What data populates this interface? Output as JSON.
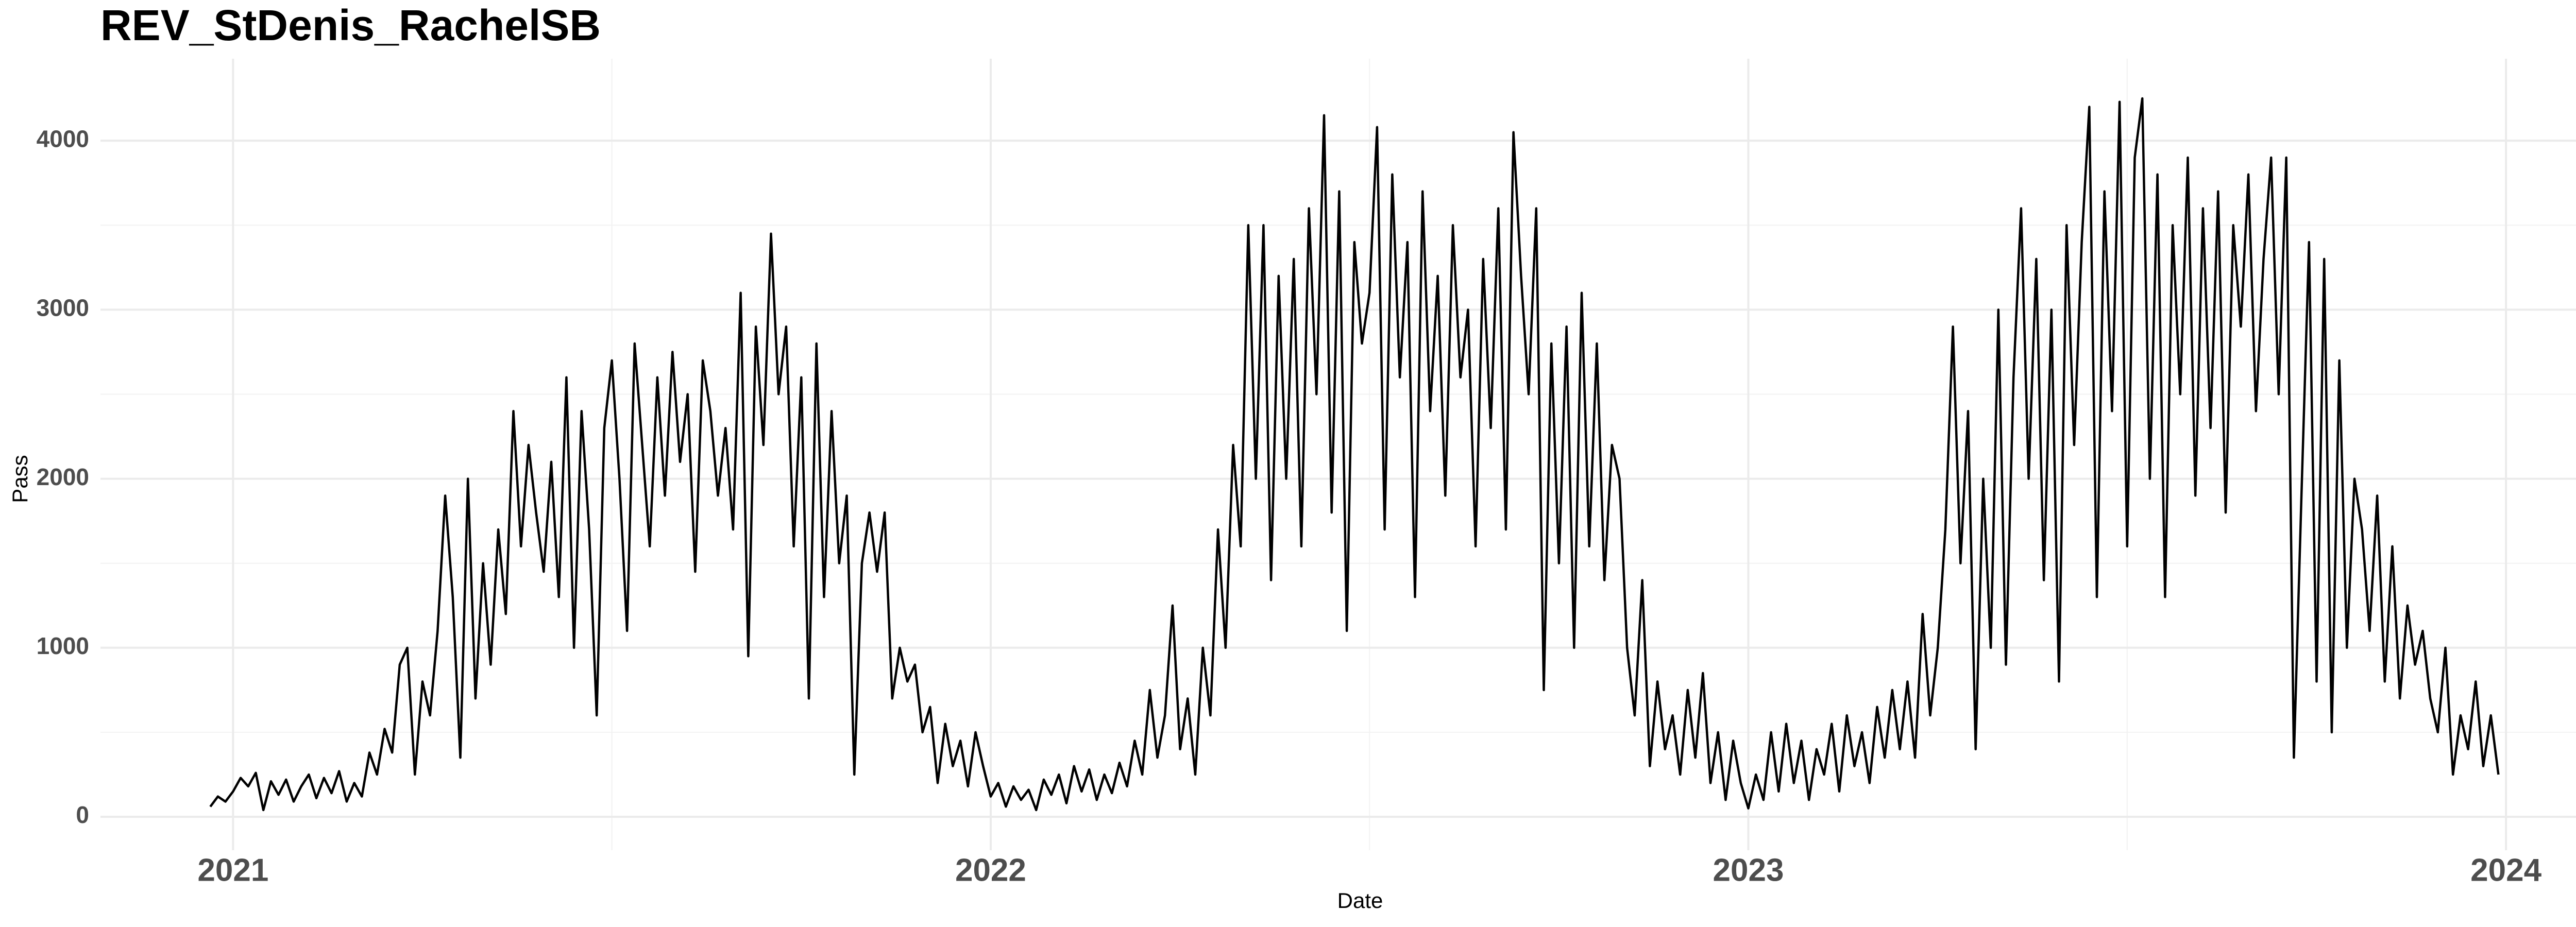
{
  "chart_data": {
    "type": "line",
    "title": "REV_StDenis_RachelSB",
    "x_label": "Date",
    "y_label": "Pass",
    "color": "#000000",
    "grid": true,
    "xlim": [
      2020.825,
      2024.123
    ],
    "xticks": [
      2021,
      2022,
      2023,
      2024
    ],
    "ylim": [
      -198,
      4485
    ],
    "yticks": [
      0,
      1000,
      2000,
      3000,
      4000
    ],
    "x": [
      2020.97,
      2020.98,
      2020.99,
      2021.0,
      2021.01,
      2021.02,
      2021.03,
      2021.04,
      2021.05,
      2021.06,
      2021.07,
      2021.08,
      2021.09,
      2021.1,
      2021.11,
      2021.12,
      2021.13,
      2021.14,
      2021.15,
      2021.16,
      2021.17,
      2021.18,
      2021.19,
      2021.2,
      2021.21,
      2021.22,
      2021.23,
      2021.24,
      2021.25,
      2021.26,
      2021.27,
      2021.28,
      2021.29,
      2021.3,
      2021.31,
      2021.32,
      2021.33,
      2021.34,
      2021.35,
      2021.36,
      2021.37,
      2021.38,
      2021.39,
      2021.4,
      2021.41,
      2021.42,
      2021.43,
      2021.44,
      2021.45,
      2021.46,
      2021.47,
      2021.48,
      2021.49,
      2021.5,
      2021.51,
      2021.52,
      2021.53,
      2021.54,
      2021.55,
      2021.56,
      2021.57,
      2021.58,
      2021.59,
      2021.6,
      2021.61,
      2021.62,
      2021.63,
      2021.64,
      2021.65,
      2021.66,
      2021.67,
      2021.68,
      2021.69,
      2021.7,
      2021.71,
      2021.72,
      2021.73,
      2021.74,
      2021.75,
      2021.76,
      2021.77,
      2021.78,
      2021.79,
      2021.8,
      2021.81,
      2021.82,
      2021.83,
      2021.84,
      2021.85,
      2021.86,
      2021.87,
      2021.88,
      2021.89,
      2021.9,
      2021.91,
      2021.92,
      2021.93,
      2021.94,
      2021.95,
      2021.96,
      2021.97,
      2021.98,
      2021.99,
      2022.0,
      2022.01,
      2022.02,
      2022.03,
      2022.04,
      2022.05,
      2022.06,
      2022.07,
      2022.08,
      2022.09,
      2022.1,
      2022.11,
      2022.12,
      2022.13,
      2022.14,
      2022.15,
      2022.16,
      2022.17,
      2022.18,
      2022.19,
      2022.2,
      2022.21,
      2022.22,
      2022.23,
      2022.24,
      2022.25,
      2022.26,
      2022.27,
      2022.28,
      2022.29,
      2022.3,
      2022.31,
      2022.32,
      2022.33,
      2022.34,
      2022.35,
      2022.36,
      2022.37,
      2022.38,
      2022.39,
      2022.4,
      2022.41,
      2022.42,
      2022.43,
      2022.44,
      2022.45,
      2022.46,
      2022.47,
      2022.48,
      2022.49,
      2022.5,
      2022.51,
      2022.52,
      2022.53,
      2022.54,
      2022.55,
      2022.56,
      2022.57,
      2022.58,
      2022.59,
      2022.6,
      2022.61,
      2022.62,
      2022.63,
      2022.64,
      2022.65,
      2022.66,
      2022.67,
      2022.68,
      2022.69,
      2022.7,
      2022.71,
      2022.72,
      2022.73,
      2022.74,
      2022.75,
      2022.76,
      2022.77,
      2022.78,
      2022.79,
      2022.8,
      2022.81,
      2022.82,
      2022.83,
      2022.84,
      2022.85,
      2022.86,
      2022.87,
      2022.88,
      2022.89,
      2022.9,
      2022.91,
      2022.92,
      2022.93,
      2022.94,
      2022.95,
      2022.96,
      2022.97,
      2022.98,
      2022.99,
      2023.0,
      2023.01,
      2023.02,
      2023.03,
      2023.04,
      2023.05,
      2023.06,
      2023.07,
      2023.08,
      2023.09,
      2023.1,
      2023.11,
      2023.12,
      2023.13,
      2023.14,
      2023.15,
      2023.16,
      2023.17,
      2023.18,
      2023.19,
      2023.2,
      2023.21,
      2023.22,
      2023.23,
      2023.24,
      2023.25,
      2023.26,
      2023.27,
      2023.28,
      2023.29,
      2023.3,
      2023.31,
      2023.32,
      2023.33,
      2023.34,
      2023.35,
      2023.36,
      2023.37,
      2023.38,
      2023.39,
      2023.4,
      2023.41,
      2023.42,
      2023.43,
      2023.44,
      2023.45,
      2023.46,
      2023.47,
      2023.48,
      2023.49,
      2023.5,
      2023.51,
      2023.52,
      2023.53,
      2023.54,
      2023.55,
      2023.56,
      2023.57,
      2023.58,
      2023.59,
      2023.6,
      2023.61,
      2023.62,
      2023.63,
      2023.64,
      2023.65,
      2023.66,
      2023.67,
      2023.68,
      2023.69,
      2023.7,
      2023.71,
      2023.72,
      2023.73,
      2023.74,
      2023.75,
      2023.76,
      2023.77,
      2023.78,
      2023.79,
      2023.8,
      2023.81,
      2023.82,
      2023.83,
      2023.84,
      2023.85,
      2023.86,
      2023.87,
      2023.88,
      2023.89,
      2023.9,
      2023.91,
      2023.92,
      2023.93,
      2023.94,
      2023.95,
      2023.96,
      2023.97,
      2023.98,
      2023.99
    ],
    "values": [
      60,
      120,
      90,
      150,
      230,
      180,
      260,
      40,
      210,
      130,
      220,
      90,
      180,
      250,
      110,
      230,
      140,
      270,
      90,
      200,
      120,
      380,
      250,
      520,
      380,
      900,
      1000,
      250,
      800,
      600,
      1100,
      1900,
      1300,
      350,
      2000,
      700,
      1500,
      900,
      1700,
      1200,
      2400,
      1600,
      2200,
      1800,
      1450,
      2100,
      1300,
      2600,
      1000,
      2400,
      1700,
      600,
      2300,
      2700,
      2000,
      1100,
      2800,
      2200,
      1600,
      2600,
      1900,
      2750,
      2100,
      2500,
      1450,
      2700,
      2400,
      1900,
      2300,
      1700,
      3100,
      950,
      2900,
      2200,
      3450,
      2500,
      2900,
      1600,
      2600,
      700,
      2800,
      1300,
      2400,
      1500,
      1900,
      250,
      1500,
      1800,
      1450,
      1800,
      700,
      1000,
      800,
      900,
      500,
      650,
      200,
      550,
      300,
      450,
      180,
      500,
      300,
      120,
      200,
      60,
      180,
      100,
      160,
      40,
      220,
      130,
      250,
      80,
      300,
      150,
      280,
      100,
      250,
      140,
      320,
      180,
      450,
      250,
      750,
      350,
      600,
      1250,
      400,
      700,
      250,
      1000,
      600,
      1700,
      1000,
      2200,
      1600,
      3500,
      2000,
      3500,
      1400,
      3200,
      2000,
      3300,
      1600,
      3600,
      2500,
      4150,
      1800,
      3700,
      1100,
      3400,
      2800,
      3100,
      4080,
      1700,
      3800,
      2600,
      3400,
      1300,
      3700,
      2400,
      3200,
      1900,
      3500,
      2600,
      3000,
      1600,
      3300,
      2300,
      3600,
      1700,
      4050,
      3200,
      2500,
      3600,
      750,
      2800,
      1500,
      2900,
      1000,
      3100,
      1600,
      2800,
      1400,
      2200,
      2000,
      1000,
      600,
      1400,
      300,
      800,
      400,
      600,
      250,
      750,
      350,
      850,
      200,
      500,
      100,
      450,
      200,
      50,
      250,
      100,
      500,
      150,
      550,
      200,
      450,
      100,
      400,
      250,
      550,
      150,
      600,
      300,
      500,
      200,
      650,
      350,
      750,
      400,
      800,
      350,
      1200,
      600,
      1000,
      1700,
      2900,
      1500,
      2400,
      400,
      2000,
      1000,
      3000,
      900,
      2600,
      3600,
      2000,
      3300,
      1400,
      3000,
      800,
      3500,
      2200,
      3400,
      4200,
      1300,
      3700,
      2400,
      4230,
      1600,
      3900,
      4250,
      2000,
      3800,
      1300,
      3500,
      2500,
      3900,
      1900,
      3600,
      2300,
      3700,
      1800,
      3500,
      2900,
      3800,
      2400,
      3300,
      3900,
      2500,
      3900,
      350,
      1900,
      3400,
      800,
      3300,
      500,
      2700,
      1000,
      2000,
      1700,
      1100,
      1900,
      800,
      1600,
      700,
      1250,
      900,
      1100,
      700,
      500,
      1000,
      250,
      600,
      400,
      800,
      300,
      600,
      250
    ]
  }
}
